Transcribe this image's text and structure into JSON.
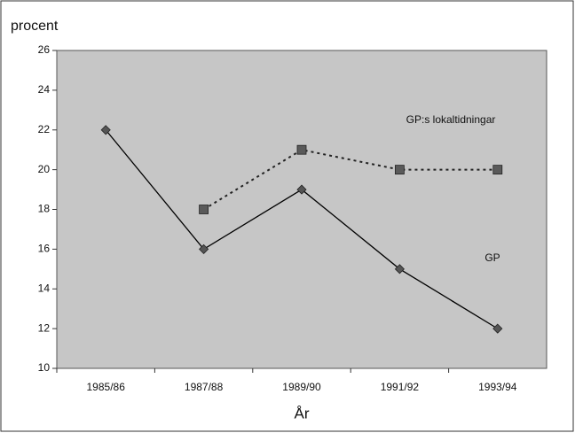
{
  "chart_data": {
    "type": "line",
    "ylabel": "procent",
    "xlabel": "År",
    "categories": [
      "1985/86",
      "1987/88",
      "1989/90",
      "1991/92",
      "1993/94"
    ],
    "series": [
      {
        "name": "GP",
        "color": "#000000",
        "marker_color": "#555555",
        "style": "solid",
        "marker": "diamond",
        "values": [
          22,
          16,
          19,
          15,
          12
        ]
      },
      {
        "name": "GP:s lokaltidningar",
        "color": "#222222",
        "marker_color": "#5a5a5a",
        "style": "dotted",
        "marker": "square",
        "values": [
          null,
          18,
          21,
          20,
          20
        ]
      }
    ],
    "ylim": [
      10,
      26
    ],
    "yticks": [
      10,
      12,
      14,
      16,
      18,
      20,
      22,
      24,
      26
    ]
  }
}
